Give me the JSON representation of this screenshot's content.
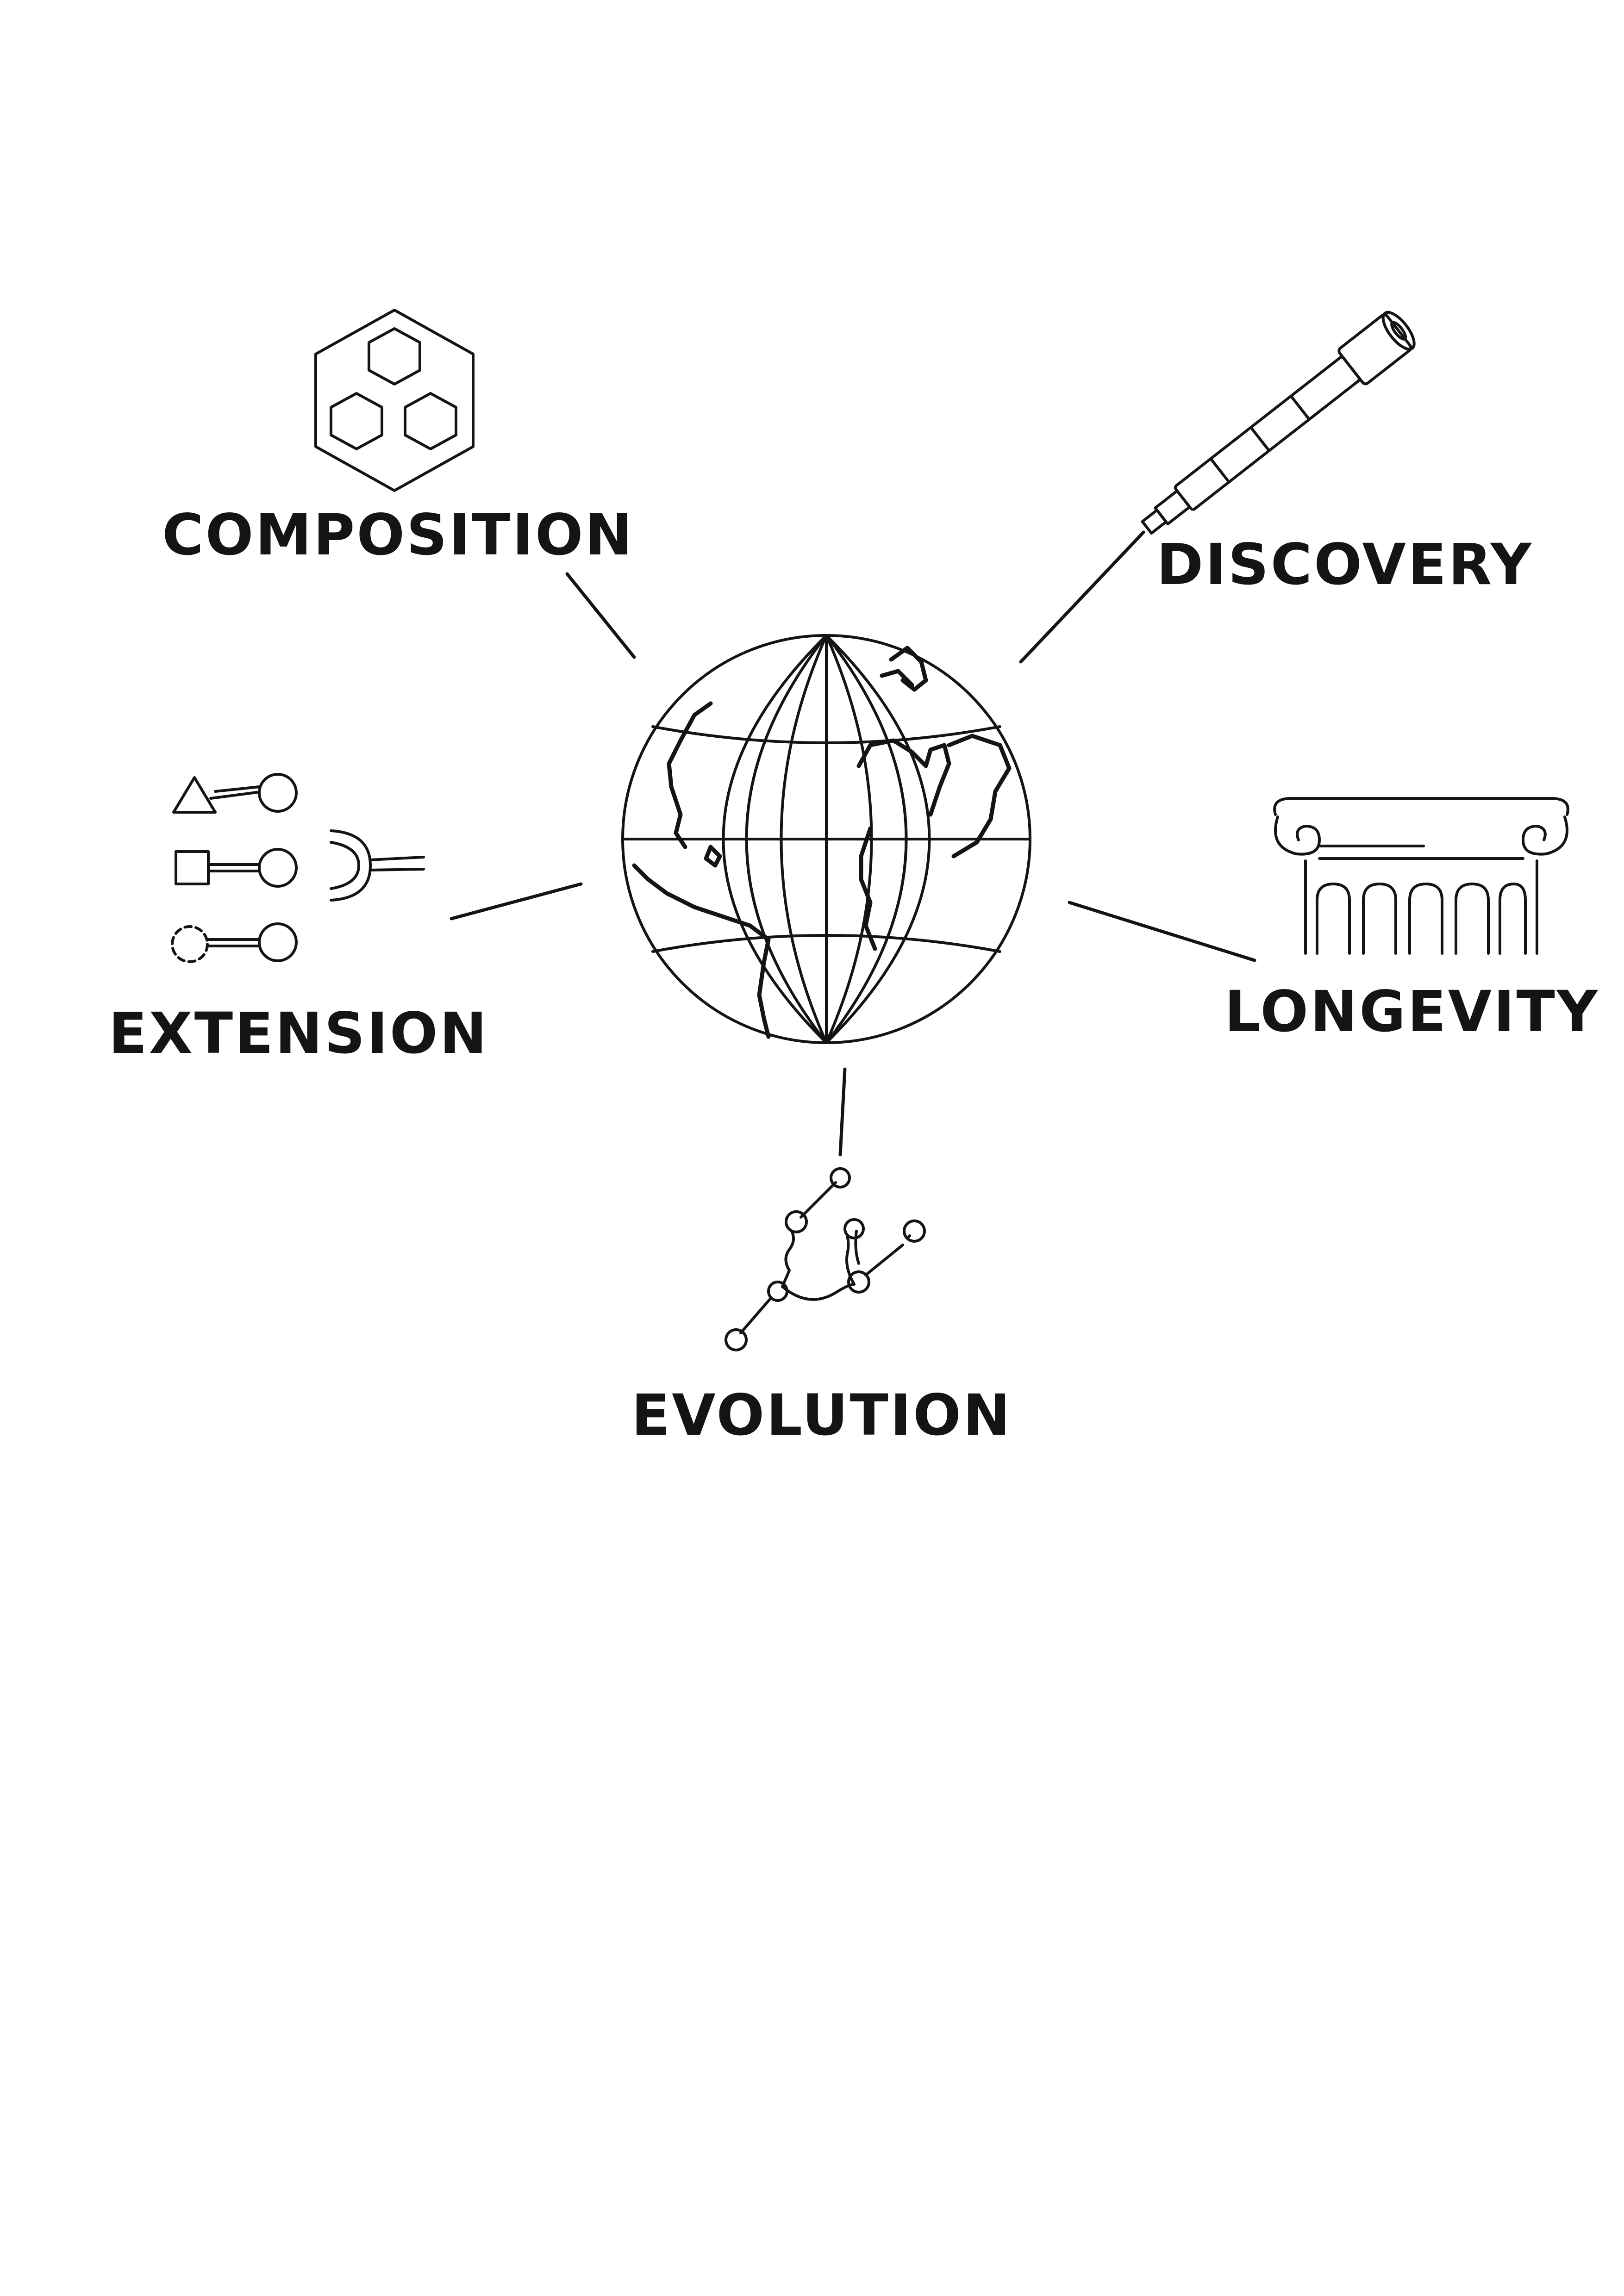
{
  "diagram": {
    "center": "globe-icon",
    "labels": {
      "composition": "COMPOSITION",
      "discovery": "DISCOVERY",
      "extension": "EXTENSION",
      "longevity": "LONGEVITY",
      "evolution": "EVOLUTION"
    },
    "icons": {
      "composition": "hexagon-cluster-icon",
      "discovery": "telescope-icon",
      "extension": "plug-connectors-icon",
      "longevity": "column-capital-icon",
      "evolution": "branching-tree-icon"
    },
    "colors": {
      "ink": "#141414",
      "background": "#ffffff"
    }
  }
}
